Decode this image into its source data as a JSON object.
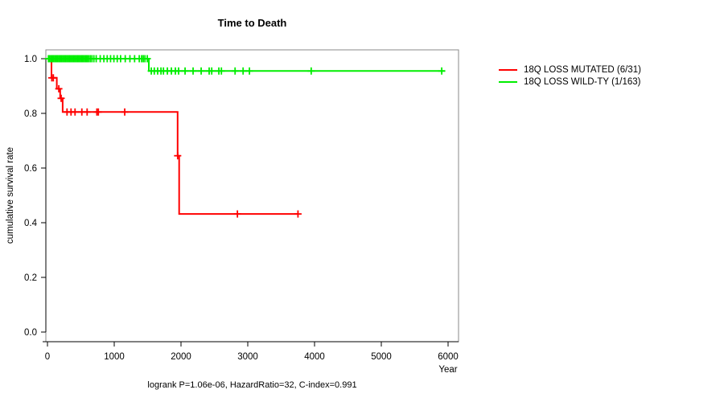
{
  "title": "Time to Death",
  "footer": "logrank P=1.06e-06, HazardRatio=32, C-index=0.991",
  "axes": {
    "x_label": "Year",
    "y_label": "cumulative survival rate"
  },
  "legend": {
    "items": [
      {
        "label": "18Q LOSS MUTATED (6/31)",
        "color": "#ff0000"
      },
      {
        "label": "18Q LOSS WILD-TY (1/163)",
        "color": "#00ee00"
      }
    ]
  },
  "colors": {
    "box_border": "#888888",
    "axis": "#000000",
    "text": "#000000"
  },
  "chart_data": {
    "type": "line",
    "subtype": "kaplan-meier-step-function",
    "title": "Time to Death",
    "xlabel": "Year",
    "ylabel": "cumulative survival rate",
    "xlim": [
      0,
      6000
    ],
    "ylim": [
      0.0,
      1.03
    ],
    "x_ticks": [
      0,
      1000,
      2000,
      3000,
      4000,
      5000,
      6000
    ],
    "y_ticks": [
      1.0,
      0.8,
      0.6,
      0.4,
      0.2,
      0.0
    ],
    "grid": "off",
    "legend_position": "right-outside",
    "annotation": "logrank P=1.06e-06, HazardRatio=32, C-index=0.991",
    "series": [
      {
        "name": "18Q LOSS MUTATED (6/31)",
        "color": "#ff0000",
        "step_points": [
          [
            0,
            1.0
          ],
          [
            60,
            1.0
          ],
          [
            60,
            0.93
          ],
          [
            140,
            0.93
          ],
          [
            140,
            0.89
          ],
          [
            190,
            0.89
          ],
          [
            190,
            0.855
          ],
          [
            228,
            0.855
          ],
          [
            228,
            0.805
          ],
          [
            1950,
            0.805
          ],
          [
            1950,
            0.645
          ],
          [
            1972,
            0.645
          ],
          [
            1972,
            0.432
          ],
          [
            3760,
            0.432
          ]
        ],
        "censor_marks": [
          [
            65,
            0.93
          ],
          [
            88,
            0.93
          ],
          [
            170,
            0.89
          ],
          [
            205,
            0.855
          ],
          [
            293,
            0.805
          ],
          [
            353,
            0.805
          ],
          [
            413,
            0.805
          ],
          [
            515,
            0.805
          ],
          [
            594,
            0.805
          ],
          [
            740,
            0.805
          ],
          [
            762,
            0.805
          ],
          [
            1157,
            0.805
          ],
          [
            1950,
            0.645
          ],
          [
            2845,
            0.432
          ],
          [
            3752,
            0.432
          ]
        ]
      },
      {
        "name": "18Q LOSS WILD-TY (1/163)",
        "color": "#00ee00",
        "step_points": [
          [
            0,
            1.0
          ],
          [
            1518,
            1.0
          ],
          [
            1518,
            0.955
          ],
          [
            5953,
            0.955
          ]
        ],
        "censor_marks": [
          [
            15,
            1.0
          ],
          [
            35,
            1.0
          ],
          [
            55,
            1.0
          ],
          [
            75,
            1.0
          ],
          [
            95,
            1.0
          ],
          [
            115,
            1.0
          ],
          [
            135,
            1.0
          ],
          [
            155,
            1.0
          ],
          [
            175,
            1.0
          ],
          [
            195,
            1.0
          ],
          [
            215,
            1.0
          ],
          [
            235,
            1.0
          ],
          [
            255,
            1.0
          ],
          [
            275,
            1.0
          ],
          [
            295,
            1.0
          ],
          [
            315,
            1.0
          ],
          [
            335,
            1.0
          ],
          [
            355,
            1.0
          ],
          [
            375,
            1.0
          ],
          [
            395,
            1.0
          ],
          [
            415,
            1.0
          ],
          [
            435,
            1.0
          ],
          [
            455,
            1.0
          ],
          [
            475,
            1.0
          ],
          [
            495,
            1.0
          ],
          [
            515,
            1.0
          ],
          [
            535,
            1.0
          ],
          [
            555,
            1.0
          ],
          [
            575,
            1.0
          ],
          [
            595,
            1.0
          ],
          [
            615,
            1.0
          ],
          [
            640,
            1.0
          ],
          [
            665,
            1.0
          ],
          [
            695,
            1.0
          ],
          [
            730,
            1.0
          ],
          [
            790,
            1.0
          ],
          [
            845,
            1.0
          ],
          [
            895,
            1.0
          ],
          [
            945,
            1.0
          ],
          [
            995,
            1.0
          ],
          [
            1045,
            1.0
          ],
          [
            1095,
            1.0
          ],
          [
            1165,
            1.0
          ],
          [
            1235,
            1.0
          ],
          [
            1305,
            1.0
          ],
          [
            1375,
            1.0
          ],
          [
            1410,
            1.0
          ],
          [
            1435,
            1.0
          ],
          [
            1460,
            1.0
          ],
          [
            1495,
            1.0
          ],
          [
            1555,
            0.955
          ],
          [
            1600,
            0.955
          ],
          [
            1650,
            0.955
          ],
          [
            1700,
            0.955
          ],
          [
            1737,
            0.955
          ],
          [
            1796,
            0.955
          ],
          [
            1856,
            0.955
          ],
          [
            1916,
            0.955
          ],
          [
            1964,
            0.955
          ],
          [
            2061,
            0.955
          ],
          [
            2181,
            0.955
          ],
          [
            2302,
            0.955
          ],
          [
            2422,
            0.955
          ],
          [
            2460,
            0.955
          ],
          [
            2567,
            0.955
          ],
          [
            2605,
            0.955
          ],
          [
            2810,
            0.955
          ],
          [
            2930,
            0.955
          ],
          [
            3025,
            0.955
          ],
          [
            3950,
            0.955
          ],
          [
            5905,
            0.955
          ]
        ]
      }
    ]
  }
}
